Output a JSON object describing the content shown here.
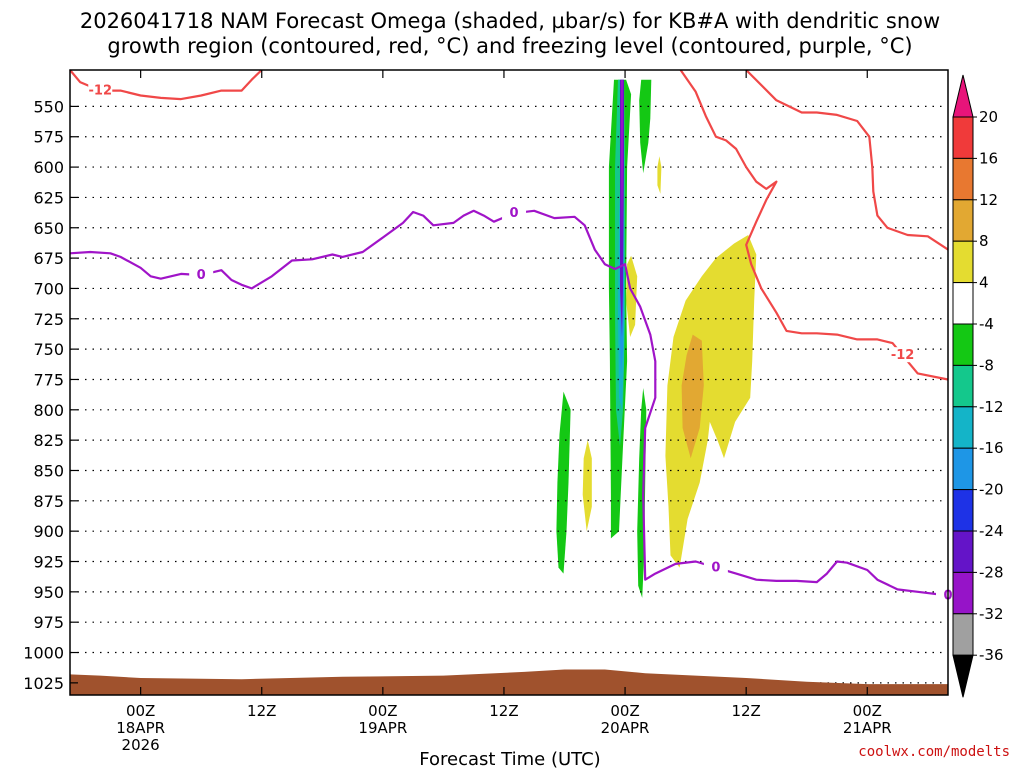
{
  "chart_data": {
    "type": "contour",
    "title_line1": "2026041718 NAM Forecast Omega (shaded, µbar/s) for KB#A with dendritic snow",
    "title_line2": "growth region (contoured, red, °C) and freezing level (contoured, purple, °C)",
    "xlabel": "Forecast Time (UTC)",
    "credit": "coolwx.com/modelts",
    "x_unit": "forecast hours from 18APR 00Z",
    "x_range": [
      -7,
      80
    ],
    "y_unit": "mb",
    "y_range": [
      520,
      1035
    ],
    "x_ticks": [
      {
        "hour": 0,
        "lines": [
          "00Z",
          "18APR",
          "2026"
        ]
      },
      {
        "hour": 12,
        "lines": [
          "12Z"
        ]
      },
      {
        "hour": 24,
        "lines": [
          "00Z",
          "19APR"
        ]
      },
      {
        "hour": 36,
        "lines": [
          "12Z"
        ]
      },
      {
        "hour": 48,
        "lines": [
          "00Z",
          "20APR"
        ]
      },
      {
        "hour": 60,
        "lines": [
          "12Z"
        ]
      },
      {
        "hour": 72,
        "lines": [
          "00Z",
          "21APR"
        ]
      }
    ],
    "y_ticks": [
      550,
      575,
      600,
      625,
      650,
      675,
      700,
      725,
      750,
      775,
      800,
      825,
      850,
      875,
      900,
      925,
      950,
      975,
      1000,
      1025
    ],
    "colorbar": {
      "ticks": [
        "20",
        "16",
        "12",
        "8",
        "4",
        "-4",
        "-8",
        "-12",
        "-16",
        "-20",
        "-24",
        "-28",
        "-32",
        "-36"
      ],
      "colors": [
        "#f03a3a",
        "#e87830",
        "#e2a832",
        "#e4dc30",
        "#ffffff",
        "#14c814",
        "#14c88c",
        "#14b4c8",
        "#1e96e6",
        "#1e32e6",
        "#6414c8",
        "#9614c8",
        "#a0a0a0"
      ],
      "top_arrow": "#e8147a",
      "bottom_arrow": "#000000"
    },
    "omega_regions": [
      {
        "label": "yellow",
        "value": "4 to 8",
        "color": "#e4dc30",
        "points": [
          [
            58.8,
            663
          ],
          [
            60.2,
            656
          ],
          [
            61.0,
            672
          ],
          [
            60.8,
            710
          ],
          [
            60.6,
            760
          ],
          [
            60.4,
            790
          ],
          [
            58.9,
            810
          ],
          [
            57.8,
            840
          ],
          [
            57.2,
            826
          ],
          [
            56.4,
            810
          ],
          [
            56.2,
            825
          ],
          [
            55.4,
            860
          ],
          [
            54.2,
            890
          ],
          [
            53.4,
            930
          ],
          [
            52.5,
            920
          ],
          [
            52.3,
            880
          ],
          [
            52.0,
            838
          ],
          [
            52.2,
            780
          ],
          [
            52.8,
            740
          ],
          [
            54.0,
            710
          ],
          [
            55.6,
            690
          ],
          [
            57.0,
            675
          ]
        ]
      },
      {
        "label": "orange",
        "value": "8 to 12",
        "color": "#e2a832",
        "points": [
          [
            54.7,
            738
          ],
          [
            55.6,
            743
          ],
          [
            55.8,
            780
          ],
          [
            55.4,
            815
          ],
          [
            54.5,
            840
          ],
          [
            53.7,
            815
          ],
          [
            53.6,
            780
          ],
          [
            54.1,
            755
          ]
        ]
      },
      {
        "label": "yellow",
        "value": "4 to 8",
        "color": "#e4dc30",
        "points": [
          [
            48.6,
            673
          ],
          [
            49.2,
            690
          ],
          [
            49.0,
            730
          ],
          [
            48.5,
            740
          ],
          [
            48.1,
            710
          ],
          [
            48.2,
            680
          ]
        ]
      },
      {
        "label": "yellow",
        "value": "4 to 8",
        "color": "#e4dc30",
        "points": [
          [
            44.3,
            825
          ],
          [
            44.7,
            840
          ],
          [
            44.7,
            880
          ],
          [
            44.2,
            900
          ],
          [
            43.8,
            870
          ],
          [
            43.9,
            840
          ]
        ]
      },
      {
        "label": "yellow",
        "value": "4 to 8",
        "color": "#e4dc30",
        "points": [
          [
            51.4,
            591
          ],
          [
            51.6,
            600
          ],
          [
            51.5,
            622
          ],
          [
            51.2,
            615
          ],
          [
            51.2,
            600
          ]
        ]
      },
      {
        "label": "green",
        "value": "-8 to -4",
        "color": "#14c814",
        "points": [
          [
            41.9,
            785
          ],
          [
            42.6,
            800
          ],
          [
            42.4,
            860
          ],
          [
            42.2,
            900
          ],
          [
            41.9,
            935
          ],
          [
            41.4,
            930
          ],
          [
            41.2,
            900
          ],
          [
            41.3,
            860
          ],
          [
            41.5,
            820
          ]
        ]
      },
      {
        "label": "green",
        "value": "-8 to -4",
        "color": "#14c814",
        "points": [
          [
            46.9,
            528
          ],
          [
            48.1,
            528
          ],
          [
            48.6,
            540
          ],
          [
            48.2,
            600
          ],
          [
            48.1,
            700
          ],
          [
            48.2,
            760
          ],
          [
            47.8,
            830
          ],
          [
            47.4,
            900
          ],
          [
            46.6,
            906
          ],
          [
            46.6,
            870
          ],
          [
            46.5,
            760
          ],
          [
            46.4,
            700
          ],
          [
            46.4,
            600
          ]
        ]
      },
      {
        "label": "green",
        "value": "-8 to -4",
        "color": "#14c814",
        "points": [
          [
            49.6,
            528
          ],
          [
            50.6,
            528
          ],
          [
            50.5,
            560
          ],
          [
            50.3,
            580
          ],
          [
            49.8,
            605
          ],
          [
            49.5,
            580
          ],
          [
            49.4,
            545
          ]
        ]
      },
      {
        "label": "green",
        "value": "-8 to -4",
        "color": "#14c814",
        "points": [
          [
            49.8,
            782
          ],
          [
            50.1,
            800
          ],
          [
            50.0,
            860
          ],
          [
            49.9,
            920
          ],
          [
            49.7,
            955
          ],
          [
            49.3,
            945
          ],
          [
            49.2,
            900
          ],
          [
            49.4,
            840
          ],
          [
            49.6,
            800
          ]
        ]
      },
      {
        "label": "teal",
        "value": "-12 to -8",
        "color": "#14c88c",
        "points": [
          [
            47.3,
            528
          ],
          [
            47.9,
            528
          ],
          [
            48.0,
            600
          ],
          [
            48.0,
            720
          ],
          [
            47.8,
            800
          ],
          [
            47.5,
            830
          ],
          [
            47.1,
            800
          ],
          [
            47.0,
            720
          ],
          [
            47.0,
            600
          ]
        ]
      },
      {
        "label": "cyan",
        "value": "-16 to -12",
        "color": "#14b4c8",
        "points": [
          [
            47.6,
            600
          ],
          [
            47.9,
            640
          ],
          [
            47.9,
            760
          ],
          [
            47.7,
            800
          ],
          [
            47.4,
            790
          ],
          [
            47.3,
            720
          ],
          [
            47.4,
            640
          ]
        ]
      },
      {
        "label": "blue",
        "value": "-20 to -16",
        "color": "#1e96e6",
        "points": [
          [
            47.7,
            640
          ],
          [
            47.9,
            700
          ],
          [
            47.8,
            750
          ],
          [
            47.6,
            770
          ],
          [
            47.5,
            740
          ],
          [
            47.5,
            680
          ]
        ]
      },
      {
        "label": "indigo",
        "value": "-28 to -24",
        "color": "#6414c8",
        "points": [
          [
            47.5,
            528
          ],
          [
            47.9,
            528
          ],
          [
            47.9,
            600
          ],
          [
            47.8,
            700
          ],
          [
            47.7,
            740
          ],
          [
            47.5,
            700
          ],
          [
            47.5,
            600
          ]
        ]
      },
      {
        "label": "purple",
        "value": "-32 to -28",
        "color": "#9614c8",
        "points": [
          [
            47.6,
            528
          ],
          [
            47.8,
            528
          ],
          [
            47.8,
            600
          ],
          [
            47.7,
            660
          ],
          [
            47.6,
            600
          ]
        ]
      }
    ],
    "terrain": {
      "label": "surface",
      "color": "#a0522d",
      "profile": [
        [
          -7,
          1018
        ],
        [
          -4,
          1019
        ],
        [
          0,
          1021
        ],
        [
          10,
          1022
        ],
        [
          20,
          1020
        ],
        [
          30,
          1019
        ],
        [
          38,
          1016
        ],
        [
          42,
          1014
        ],
        [
          46,
          1014
        ],
        [
          50,
          1017
        ],
        [
          55,
          1019
        ],
        [
          60,
          1021
        ],
        [
          66,
          1024
        ],
        [
          72,
          1026
        ],
        [
          80,
          1026
        ]
      ]
    },
    "contours_red_minus12": [
      {
        "label": "-12",
        "points": [
          [
            -7,
            520
          ],
          [
            -6,
            530
          ],
          [
            -4,
            537
          ],
          [
            -2,
            537
          ],
          [
            0,
            541
          ],
          [
            2,
            543
          ],
          [
            4,
            544
          ],
          [
            6,
            541
          ],
          [
            8,
            537
          ],
          [
            10,
            537
          ],
          [
            11,
            528
          ],
          [
            12,
            520
          ]
        ]
      },
      {
        "label": "-12",
        "points": [
          [
            53.5,
            520
          ],
          [
            55,
            538
          ],
          [
            56,
            558
          ],
          [
            57,
            575
          ],
          [
            58,
            578
          ],
          [
            59,
            585
          ],
          [
            60,
            600
          ],
          [
            61,
            612
          ],
          [
            62,
            618
          ],
          [
            63,
            612
          ],
          [
            62,
            627
          ],
          [
            61,
            645
          ],
          [
            60,
            664
          ],
          [
            60.5,
            680
          ],
          [
            61.5,
            700
          ],
          [
            63,
            720
          ],
          [
            64,
            735
          ],
          [
            65.5,
            737
          ],
          [
            67,
            737
          ],
          [
            69,
            738
          ],
          [
            71,
            742
          ],
          [
            73,
            742
          ],
          [
            74.5,
            745
          ],
          [
            75.5,
            755
          ],
          [
            76,
            760
          ],
          [
            77,
            770
          ],
          [
            80,
            775
          ]
        ]
      },
      {
        "label": "-12",
        "points": [
          [
            60,
            520
          ],
          [
            63,
            545
          ],
          [
            65.5,
            555
          ],
          [
            67,
            555
          ],
          [
            69,
            557
          ],
          [
            71,
            562
          ],
          [
            72.2,
            575
          ],
          [
            72.5,
            600
          ],
          [
            72.6,
            620
          ],
          [
            73,
            640
          ],
          [
            74,
            650
          ],
          [
            76,
            656
          ],
          [
            78,
            657
          ],
          [
            80,
            668
          ]
        ]
      }
    ],
    "contours_purple_zero": [
      {
        "label": "0",
        "points": [
          [
            -7,
            671
          ],
          [
            -5,
            670
          ],
          [
            -3,
            671
          ],
          [
            -2,
            674
          ],
          [
            0,
            683
          ],
          [
            1,
            690
          ],
          [
            2,
            692
          ],
          [
            4,
            688
          ],
          [
            6,
            689
          ],
          [
            8,
            685
          ],
          [
            9,
            693
          ],
          [
            10,
            697
          ],
          [
            11,
            700
          ],
          [
            13,
            690
          ],
          [
            15,
            677
          ],
          [
            17,
            676
          ],
          [
            19,
            672
          ],
          [
            20,
            674
          ],
          [
            22,
            670
          ],
          [
            24,
            658
          ],
          [
            26,
            646
          ],
          [
            27,
            637
          ],
          [
            28,
            640
          ],
          [
            29,
            648
          ],
          [
            31,
            646
          ],
          [
            32,
            640
          ],
          [
            33,
            636
          ],
          [
            34,
            640
          ],
          [
            35,
            645
          ],
          [
            37,
            638
          ],
          [
            39,
            636
          ],
          [
            41,
            642
          ],
          [
            43,
            641
          ],
          [
            44,
            648
          ],
          [
            45,
            668
          ],
          [
            46,
            680
          ],
          [
            47,
            684
          ],
          [
            48,
            680
          ],
          [
            48.5,
            700
          ],
          [
            49.5,
            715
          ],
          [
            50.5,
            738
          ],
          [
            51,
            760
          ],
          [
            51,
            790
          ],
          [
            50,
            815
          ],
          [
            49.8,
            870
          ],
          [
            50,
            940
          ],
          [
            51,
            935
          ],
          [
            53,
            927
          ],
          [
            55,
            925
          ],
          [
            57,
            930
          ],
          [
            59,
            935
          ],
          [
            61,
            940
          ],
          [
            63,
            941
          ],
          [
            65,
            941
          ],
          [
            67,
            942
          ],
          [
            68,
            935
          ],
          [
            69,
            925
          ],
          [
            70,
            926
          ],
          [
            72,
            932
          ],
          [
            73,
            940
          ],
          [
            75,
            948
          ],
          [
            77,
            950
          ],
          [
            80,
            953
          ]
        ]
      }
    ]
  }
}
